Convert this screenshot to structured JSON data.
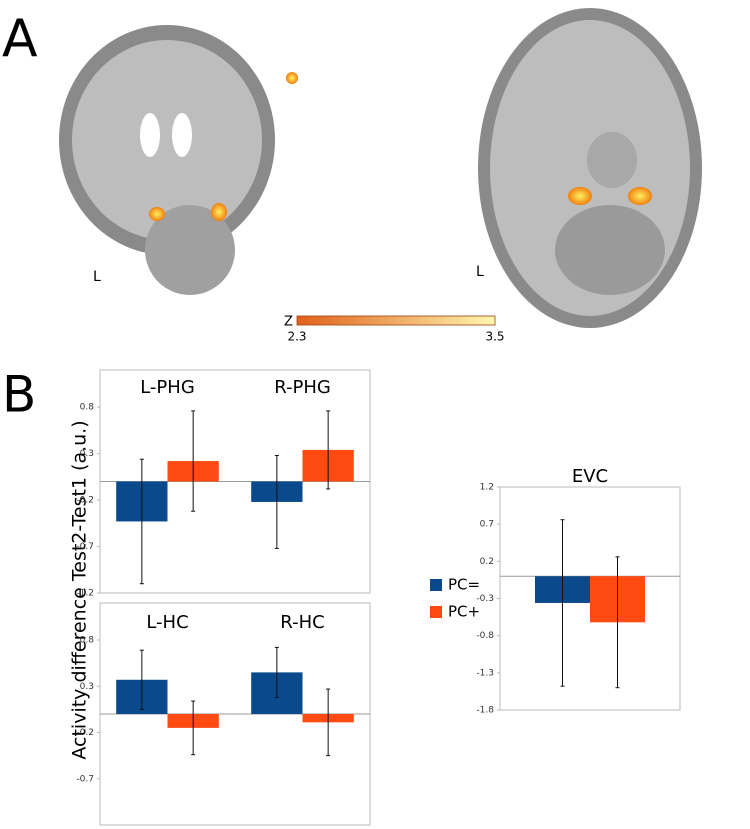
{
  "figure": {
    "panel_a": "A",
    "panel_b": "B",
    "orientation_labels": [
      "L",
      "L"
    ],
    "colorbar": {
      "label": "Z",
      "ticks": [
        2.3,
        3.5
      ],
      "colors": [
        "#e0601a",
        "#fff8b0"
      ]
    },
    "ylabel": "Activity difference Test2-Test1 (a.u.)"
  },
  "chart_data": [
    {
      "type": "bar",
      "categories": [
        "L-PHG",
        "R-PHG"
      ],
      "series": [
        {
          "name": "PC=",
          "color": "#0a4a8c",
          "values": [
            -0.43,
            -0.22
          ],
          "errors": [
            0.67,
            0.5
          ]
        },
        {
          "name": "PC+",
          "color": "#ff4a12",
          "values": [
            0.22,
            0.34
          ],
          "errors": [
            0.54,
            0.42
          ]
        }
      ],
      "ylim": [
        -1.2,
        1.2
      ],
      "yticks": [
        -1.2,
        -0.7,
        -0.2,
        0.3,
        0.8
      ]
    },
    {
      "type": "bar",
      "categories": [
        "L-HC",
        "R-HC"
      ],
      "series": [
        {
          "color": "#0a4a8c",
          "values": [
            0.37,
            0.45
          ],
          "errors": [
            0.32,
            0.27
          ]
        },
        {
          "color": "#ff4a12",
          "values": [
            -0.15,
            -0.09
          ],
          "errors": [
            0.29,
            0.36
          ]
        }
      ],
      "ylim": [
        -1.2,
        1.2
      ],
      "yticks": [
        -0.7,
        -0.2,
        0.3,
        0.8
      ]
    },
    {
      "type": "bar",
      "categories": [
        "EVC"
      ],
      "series": [
        {
          "color": "#0a4a8c",
          "values": [
            -0.36
          ],
          "errors": [
            1.12
          ]
        },
        {
          "color": "#ff4a12",
          "values": [
            -0.62
          ],
          "errors": [
            0.88
          ]
        }
      ],
      "ylim": [
        -1.8,
        1.2
      ],
      "yticks": [
        -1.8,
        -1.3,
        -0.8,
        -0.3,
        0.2,
        0.7,
        1.2
      ]
    }
  ]
}
